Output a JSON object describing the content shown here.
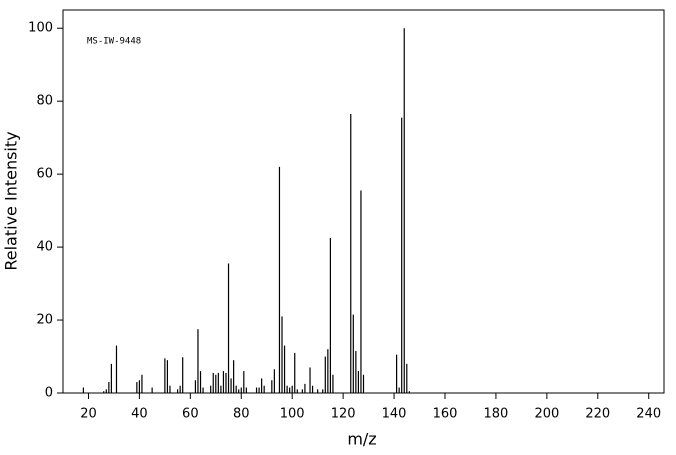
{
  "chart_data": {
    "type": "stem",
    "annotation": "MS-IW-9448",
    "xlabel": "m/z",
    "ylabel": "Relative Intensity",
    "color": "#000000",
    "xlim": [
      10,
      246
    ],
    "ylim": [
      0,
      105
    ],
    "xticks": [
      20,
      40,
      60,
      80,
      100,
      120,
      140,
      160,
      180,
      200,
      220,
      240
    ],
    "yticks": [
      0,
      20,
      40,
      60,
      80,
      100
    ],
    "x": [
      18,
      26,
      27,
      28,
      29,
      31,
      39,
      40,
      41,
      45,
      50,
      51,
      52,
      55,
      56,
      57,
      62,
      63,
      64,
      65,
      68,
      69,
      70,
      71,
      72,
      73,
      74,
      75,
      76,
      77,
      78,
      79,
      80,
      81,
      82,
      86,
      87,
      88,
      89,
      92,
      93,
      95,
      96,
      97,
      98,
      99,
      100,
      101,
      102,
      104,
      105,
      107,
      108,
      110,
      112,
      113,
      114,
      115,
      116,
      123,
      124,
      125,
      126,
      127,
      128,
      141,
      142,
      143,
      144,
      145,
      146
    ],
    "values": [
      1.5,
      0.5,
      1,
      3,
      8,
      13,
      3,
      3.5,
      5,
      1.5,
      9.5,
      9,
      2,
      1,
      2,
      9.8,
      3.5,
      17.5,
      6,
      1.5,
      2,
      5.5,
      5,
      5.5,
      2,
      6,
      5.5,
      35.5,
      4,
      9,
      2,
      1,
      1.5,
      6,
      1.5,
      1.5,
      1.5,
      4,
      2,
      3.5,
      6.5,
      62,
      21,
      13,
      2,
      1.5,
      2,
      11,
      1,
      1,
      2.5,
      7,
      2,
      1,
      1,
      10,
      12,
      42.5,
      5,
      76.5,
      21.5,
      11.5,
      6,
      55.5,
      5,
      10.5,
      1.5,
      75.5,
      100,
      8,
      0.5
    ]
  }
}
